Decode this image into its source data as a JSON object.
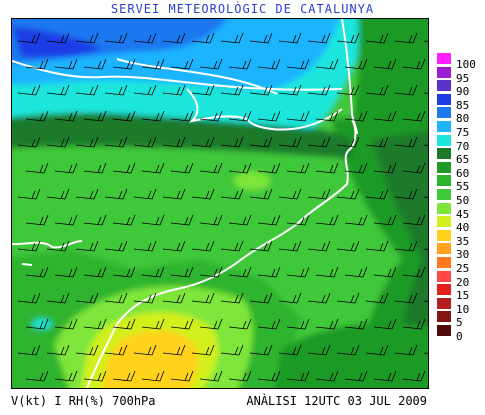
{
  "header": {
    "title": "SERVEI METEOROLÒGIC DE CATALUNYA"
  },
  "footer": {
    "left": "V(kt) I RH(%) 700hPa",
    "right": "ANÀLISI 12UTC 03 JUL 2009"
  },
  "legend": {
    "levels": [
      {
        "label": "100",
        "color": "#ff1eff"
      },
      {
        "label": "95",
        "color": "#9b1ed2"
      },
      {
        "label": "90",
        "color": "#5a32c8"
      },
      {
        "label": "85",
        "color": "#1e3ce6"
      },
      {
        "label": "80",
        "color": "#1e78f0"
      },
      {
        "label": "75",
        "color": "#1eb4ff"
      },
      {
        "label": "70",
        "color": "#1ee6dc"
      },
      {
        "label": "65",
        "color": "#1a7a2a"
      },
      {
        "label": "60",
        "color": "#1f9a28"
      },
      {
        "label": "55",
        "color": "#2db42d"
      },
      {
        "label": "50",
        "color": "#3fc83a"
      },
      {
        "label": "45",
        "color": "#7ee63a"
      },
      {
        "label": "40",
        "color": "#d2f01e"
      },
      {
        "label": "35",
        "color": "#ffd21e"
      },
      {
        "label": "30",
        "color": "#ffa01e"
      },
      {
        "label": "25",
        "color": "#ff781e"
      },
      {
        "label": "20",
        "color": "#ff4646"
      },
      {
        "label": "15",
        "color": "#e61e1e"
      },
      {
        "label": "10",
        "color": "#b41e1e"
      },
      {
        "label": "5",
        "color": "#821414"
      },
      {
        "label": "0",
        "color": "#500a0a"
      }
    ]
  },
  "map": {
    "variable": "relative humidity",
    "level": "700hPa",
    "wind_barbs": true,
    "wind_direction": "westerly",
    "coastline_color": "#ffffff"
  }
}
